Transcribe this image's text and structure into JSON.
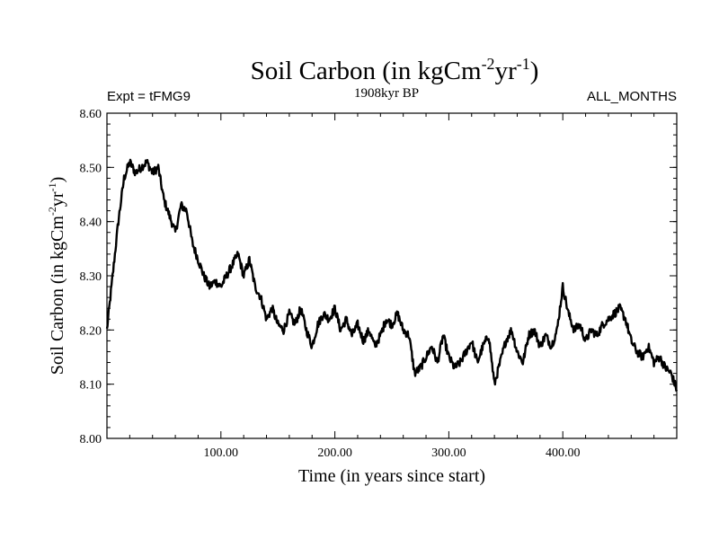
{
  "chart_data": {
    "type": "line",
    "title_main": "Soil Carbon (in kgCm",
    "title_sup1": "-2",
    "title_mid": "yr",
    "title_sup2": "-1",
    "title_end": ")",
    "subtitle_left": "Expt = tFMG9",
    "subtitle_center": "1908kyr BP",
    "subtitle_right": "ALL_MONTHS",
    "xlabel": "Time (in years since start)",
    "ylabel_main": "Soil Carbon (in kgCm",
    "ylabel_sup1": "-2",
    "ylabel_mid": "yr",
    "ylabel_sup2": "-1",
    "ylabel_end": ")",
    "xlim": [
      0,
      500
    ],
    "ylim": [
      8.0,
      8.6
    ],
    "xticks": [
      100,
      200,
      300,
      400
    ],
    "xtick_labels": [
      "100.00",
      "200.00",
      "300.00",
      "400.00"
    ],
    "yticks": [
      8.0,
      8.1,
      8.2,
      8.3,
      8.4,
      8.5,
      8.6
    ],
    "ytick_labels": [
      "8.00",
      "8.10",
      "8.20",
      "8.30",
      "8.40",
      "8.50",
      "8.60"
    ],
    "line_color": "#000000",
    "series": [
      {
        "name": "Soil Carbon",
        "x": [
          0,
          5,
          10,
          15,
          20,
          25,
          30,
          35,
          40,
          45,
          50,
          55,
          60,
          65,
          70,
          75,
          80,
          85,
          90,
          95,
          100,
          105,
          110,
          115,
          120,
          125,
          130,
          135,
          140,
          145,
          150,
          155,
          160,
          165,
          170,
          175,
          180,
          185,
          190,
          195,
          200,
          205,
          210,
          215,
          220,
          225,
          230,
          235,
          240,
          245,
          250,
          255,
          260,
          265,
          270,
          275,
          280,
          285,
          290,
          295,
          300,
          305,
          310,
          315,
          320,
          325,
          330,
          335,
          340,
          345,
          350,
          355,
          360,
          365,
          370,
          375,
          380,
          385,
          390,
          395,
          400,
          405,
          410,
          415,
          420,
          425,
          430,
          435,
          440,
          445,
          450,
          455,
          460,
          465,
          470,
          475,
          480,
          485,
          490,
          495,
          500
        ],
        "y": [
          8.2,
          8.3,
          8.4,
          8.48,
          8.51,
          8.49,
          8.5,
          8.51,
          8.49,
          8.5,
          8.44,
          8.41,
          8.38,
          8.43,
          8.42,
          8.36,
          8.33,
          8.3,
          8.28,
          8.29,
          8.28,
          8.3,
          8.32,
          8.34,
          8.3,
          8.33,
          8.28,
          8.26,
          8.22,
          8.24,
          8.21,
          8.2,
          8.23,
          8.21,
          8.24,
          8.2,
          8.17,
          8.21,
          8.23,
          8.22,
          8.24,
          8.2,
          8.22,
          8.19,
          8.21,
          8.18,
          8.2,
          8.17,
          8.19,
          8.22,
          8.21,
          8.23,
          8.2,
          8.19,
          8.12,
          8.13,
          8.15,
          8.17,
          8.14,
          8.19,
          8.15,
          8.13,
          8.14,
          8.16,
          8.18,
          8.14,
          8.17,
          8.19,
          8.1,
          8.14,
          8.18,
          8.2,
          8.16,
          8.14,
          8.19,
          8.2,
          8.17,
          8.19,
          8.17,
          8.2,
          8.28,
          8.23,
          8.2,
          8.21,
          8.18,
          8.2,
          8.19,
          8.21,
          8.22,
          8.23,
          8.24,
          8.22,
          8.18,
          8.16,
          8.15,
          8.17,
          8.14,
          8.15,
          8.13,
          8.12,
          8.09
        ]
      }
    ]
  }
}
